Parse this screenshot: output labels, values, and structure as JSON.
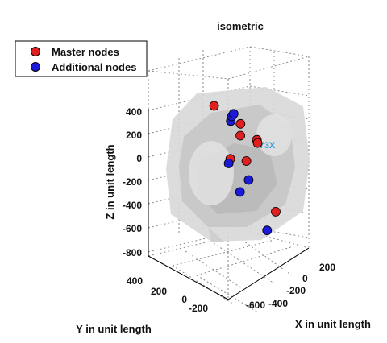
{
  "chart_data": {
    "type": "scatter",
    "title": "isometric",
    "xlabel": "X in unit length",
    "ylabel": "Y in unit length",
    "zlabel": "Z in unit length",
    "view": "3d-isometric",
    "grid": true,
    "legend_position": "top-left",
    "z_ticks": [
      "400",
      "200",
      "0",
      "-200",
      "-400",
      "-600",
      "-800"
    ],
    "x_ticks": [
      "200",
      "0",
      "-200",
      "-400",
      "-600"
    ],
    "y_ticks": [
      "400",
      "200",
      "0",
      "-200"
    ],
    "overlay_label": "Y3X",
    "overlay_color": "#2b9fd6",
    "series": [
      {
        "name": "Master nodes",
        "color": "#e02020",
        "points": [
          {
            "x": -250,
            "y": 380,
            "z": 360
          },
          {
            "x": -300,
            "y": 180,
            "z": 240
          },
          {
            "x": -150,
            "y": 80,
            "z": 180
          },
          {
            "x": 120,
            "y": -250,
            "z": 250
          },
          {
            "x": 140,
            "y": -270,
            "z": 230
          },
          {
            "x": -200,
            "y": 60,
            "z": -40
          },
          {
            "x": -520,
            "y": 420,
            "z": -140
          },
          {
            "x": -200,
            "y": -200,
            "z": -420
          }
        ]
      },
      {
        "name": "Additional nodes",
        "color": "#1a1ad8",
        "points": [
          {
            "x": -320,
            "y": 280,
            "z": 240
          },
          {
            "x": -260,
            "y": 230,
            "z": 300
          },
          {
            "x": -240,
            "y": 200,
            "z": 330
          },
          {
            "x": -440,
            "y": 380,
            "z": -160
          },
          {
            "x": -500,
            "y": 320,
            "z": -400
          },
          {
            "x": 80,
            "y": -150,
            "z": -120
          },
          {
            "x": -500,
            "y": 80,
            "z": -680
          }
        ]
      }
    ]
  }
}
